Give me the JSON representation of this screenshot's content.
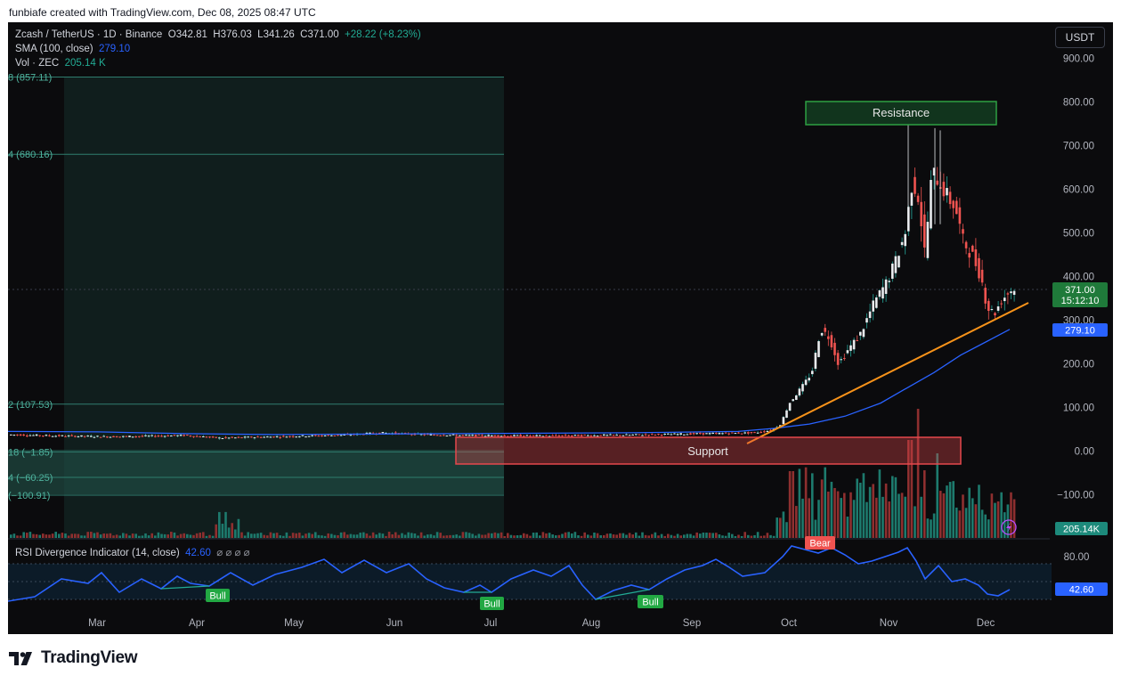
{
  "attribution": "funbiafe created with TradingView.com, Dec 08, 2025 08:47 UTC",
  "legend": {
    "symbol": "Zcash / TetherUS · 1D · Binance",
    "o_label": "O",
    "o": "342.81",
    "h_label": "H",
    "h": "376.03",
    "l_label": "L",
    "l": "341.26",
    "c_label": "C",
    "c": "371.00",
    "change": "+28.22 (+8.23%)",
    "sma_label": "SMA (100, close)",
    "sma_value": "279.10",
    "vol_label": "Vol · ZEC",
    "vol_value": "205.14 K"
  },
  "currency_button": "USDT",
  "price_tag": {
    "price": "371.00",
    "countdown": "15:12:10"
  },
  "sma_tag": "279.10",
  "volume_tag": "205.14K",
  "rsi": {
    "label": "RSI Divergence Indicator (14, close)",
    "value": "42.60",
    "tag": "42.60",
    "axis_label": "80.00",
    "toggles": "⌀ ⌀ ⌀ ⌀"
  },
  "annotations": {
    "resistance": "Resistance",
    "support": "Support",
    "bear": "Bear",
    "bull": "Bull"
  },
  "fib_levels": [
    {
      "label": "8 (857.11)",
      "price": 857.11
    },
    {
      "label": "4 (680.16)",
      "price": 680.16
    },
    {
      "label": "2 (107.53)",
      "price": 107.53
    },
    {
      "label": "18 (−1.85)",
      "price": -1.85
    },
    {
      "label": "4 (−60.25)",
      "price": -60.25
    },
    {
      "label": "(−100.91)",
      "price": -100.91
    }
  ],
  "colors": {
    "up": "#26a69a",
    "down": "#ef5350",
    "sma": "#2962ff",
    "trendline": "#f7931a",
    "resistance": "#2ea043",
    "support": "#e5484d",
    "rsi": "#2962ff"
  },
  "brand": "TradingView",
  "chart_data": {
    "type": "line",
    "title": "Zcash / TetherUS · 1D · Binance",
    "ylabel": "USDT",
    "y_ticks": [
      "900.00",
      "800.00",
      "700.00",
      "600.00",
      "500.00",
      "400.00",
      "300.00",
      "200.00",
      "100.00",
      "0.00",
      "−100.00"
    ],
    "x_ticks": [
      "Mar",
      "Apr",
      "May",
      "Jun",
      "Jul",
      "Aug",
      "Sep",
      "Oct",
      "Nov",
      "Dec"
    ],
    "ylim": [
      -120,
      940
    ],
    "grid": false,
    "series": [
      {
        "name": "ZEC/USDT close",
        "x": [
          "Feb",
          "Mar",
          "Apr",
          "May",
          "Jun",
          "Jul",
          "Aug",
          "Sep",
          "Sep 25",
          "Oct 1",
          "Oct 8",
          "Oct 15",
          "Oct 22",
          "Oct 29",
          "Nov 1",
          "Nov 7",
          "Nov 12",
          "Nov 17",
          "Nov 22",
          "Nov 28",
          "Dec 1",
          "Dec 3",
          "Dec 8"
        ],
        "values": [
          35,
          32,
          34,
          30,
          38,
          40,
          42,
          45,
          60,
          200,
          285,
          210,
          330,
          430,
          560,
          520,
          640,
          560,
          440,
          330,
          330,
          342,
          371
        ]
      },
      {
        "name": "SMA (100, close)",
        "x": [
          "Feb",
          "Jun",
          "Sep",
          "Oct 1",
          "Oct 15",
          "Nov 1",
          "Nov 15",
          "Dec 1",
          "Dec 8"
        ],
        "values": [
          45,
          38,
          45,
          60,
          95,
          150,
          215,
          262,
          279.1
        ]
      },
      {
        "name": "RSI (14)",
        "x": [
          "Feb",
          "Mar",
          "Apr",
          "May",
          "Jun",
          "Jul",
          "Aug",
          "Sep",
          "Oct",
          "Nov",
          "Dec"
        ],
        "values": [
          35,
          52,
          45,
          68,
          57,
          42,
          40,
          55,
          80,
          84,
          42.6
        ]
      }
    ]
  }
}
